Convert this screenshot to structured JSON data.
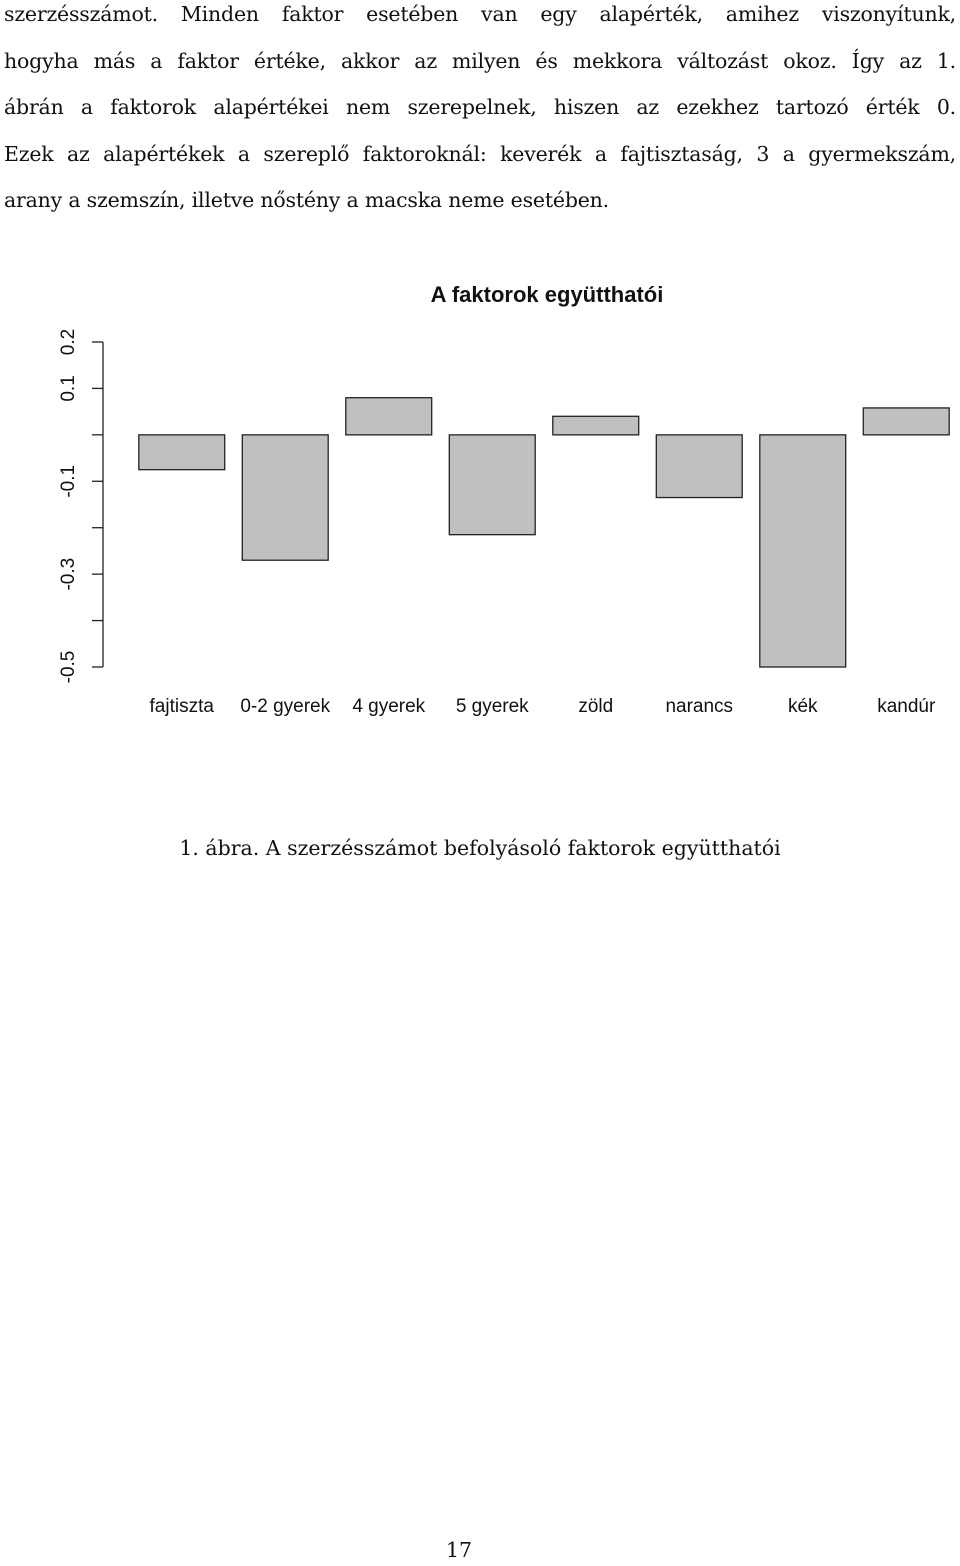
{
  "body_text": [
    "szerzésszámot.  Minden faktor esetében van egy alapérték, amihez viszonyítunk,",
    "hogyha más a faktor értéke, akkor az milyen és mekkora változást okoz. Így az 1.",
    "ábrán a faktorok alapértékei nem szerepelnek, hiszen az ezekhez tartozó érték 0.",
    "Ezek az alapértékek a szereplő faktoroknál: keverék a fajtisztaság, 3 a gyermekszám,",
    "arany a szemszín, illetve nőstény a macska neme esetében."
  ],
  "caption": "1. ábra. A szerzésszámot befolyásoló faktorok együtthatói",
  "page_number": "17",
  "chart_data": {
    "type": "bar",
    "title": "A faktorok együtthatói",
    "xlabel": "",
    "ylabel": "",
    "categories": [
      "fajtiszta",
      "0-2 gyerek",
      "4 gyerek",
      "5 gyerek",
      "zöld",
      "narancs",
      "kék",
      "kandúr"
    ],
    "values": [
      -0.075,
      -0.27,
      0.08,
      -0.215,
      0.04,
      -0.135,
      -0.5,
      0.058
    ],
    "ylim": [
      -0.5,
      0.2
    ],
    "yticks": [
      -0.5,
      -0.4,
      -0.3,
      -0.2,
      -0.1,
      0.0,
      0.1,
      0.2
    ],
    "ytick_labels": [
      "-0.5",
      "",
      "-0.3",
      "",
      "-0.1",
      "",
      "0.1",
      "0.2"
    ],
    "bar_color": "#c0c0c0",
    "edge_color": "#222222",
    "grid": false,
    "legend": "none"
  }
}
